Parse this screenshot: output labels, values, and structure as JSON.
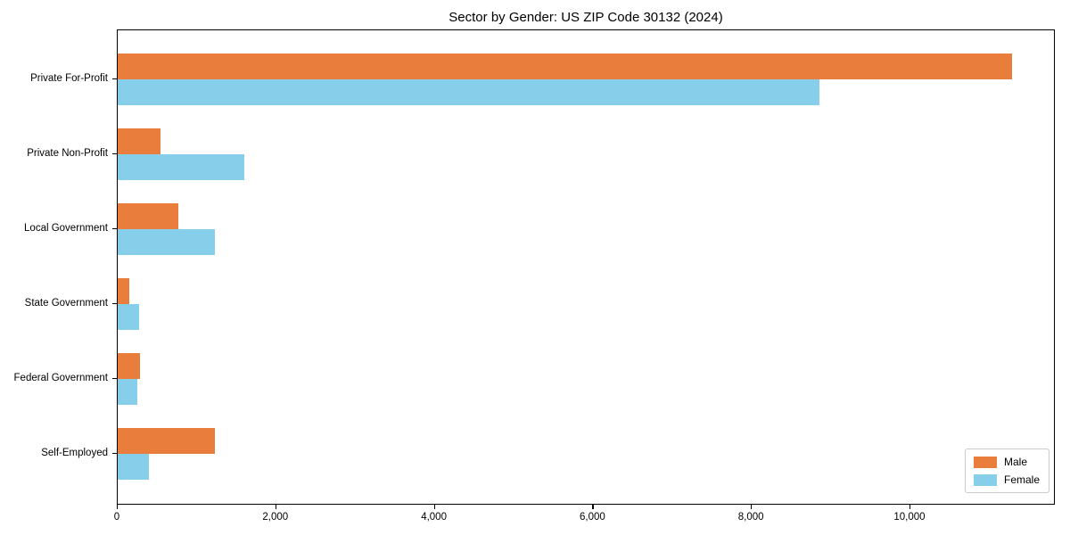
{
  "page": {
    "background_color": "#ffffff",
    "text_color": "#000000"
  },
  "chart_data": {
    "type": "bar",
    "orientation": "horizontal",
    "title": "Sector by Gender: US ZIP Code 30132 (2024)",
    "categories": [
      "Private For-Profit",
      "Private Non-Profit",
      "Local Government",
      "State Government",
      "Federal Government",
      "Self-Employed"
    ],
    "series": [
      {
        "name": "Male",
        "color": "#e87d3c",
        "values": [
          11280,
          540,
          760,
          150,
          280,
          1230
        ]
      },
      {
        "name": "Female",
        "color": "#87ceeb",
        "values": [
          8850,
          1600,
          1220,
          270,
          250,
          390
        ]
      }
    ],
    "xlabel": "",
    "ylabel": "",
    "xlim": [
      0,
      11800
    ],
    "xticks": [
      0,
      2000,
      4000,
      6000,
      8000,
      10000
    ],
    "xtick_labels": [
      "0",
      "2,000",
      "4,000",
      "6,000",
      "8,000",
      "10,000"
    ],
    "grid": false,
    "legend_position": "lower right",
    "legend_entries": [
      "Male",
      "Female"
    ]
  }
}
